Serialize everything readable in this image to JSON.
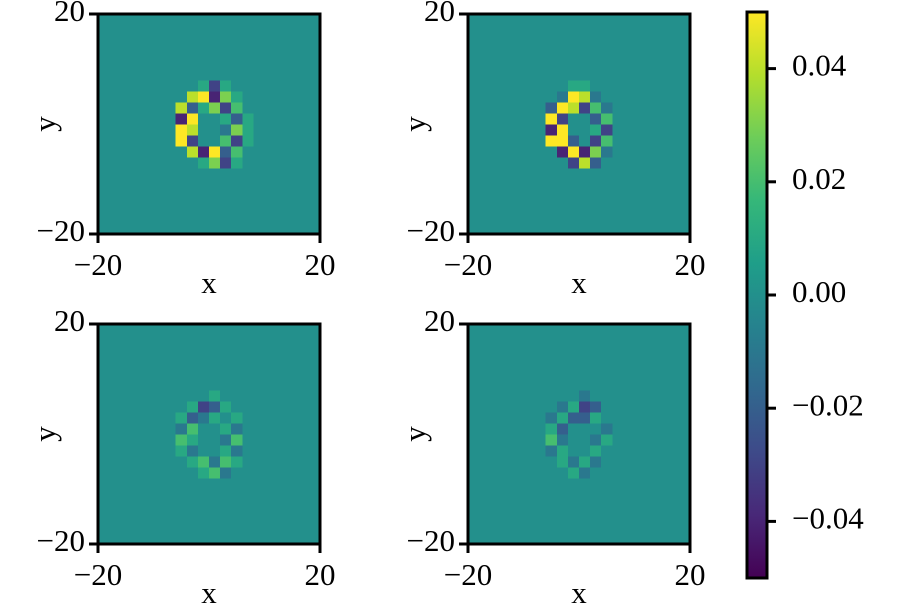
{
  "chart_data": [
    {
      "type": "heatmap",
      "xlabel": "x",
      "ylabel": "y",
      "xlim": [
        -20,
        20
      ],
      "ylim": [
        -20,
        20
      ],
      "xticks": [
        {
          "value": -20,
          "label": "−20"
        },
        20
      ],
      "yticks": [
        {
          "value": -20,
          "label": "−20"
        },
        20
      ],
      "xbins": [
        -20,
        -10,
        -8,
        -6,
        -4,
        -2,
        0,
        2,
        4,
        6,
        8,
        10,
        20
      ],
      "ybins": [
        -20,
        -10,
        -8,
        -6,
        -4,
        -2,
        0,
        2,
        4,
        6,
        8,
        10,
        20
      ],
      "z": [
        [
          0,
          0,
          0,
          0,
          0,
          0,
          0,
          0,
          0,
          0,
          0,
          0
        ],
        [
          0,
          0,
          0,
          0,
          0,
          0,
          0,
          0,
          0,
          0,
          0,
          0
        ],
        [
          0,
          0,
          0,
          0,
          0,
          0.01,
          0.03,
          -0.03,
          0.01,
          0,
          0,
          0
        ],
        [
          0,
          0,
          0,
          0,
          0.04,
          -0.04,
          0.05,
          -0.02,
          0.02,
          0,
          0,
          0
        ],
        [
          0,
          0,
          0,
          0.05,
          -0.03,
          0,
          0,
          0.02,
          -0.03,
          0.01,
          0,
          0
        ],
        [
          0,
          0,
          0,
          0.05,
          0.04,
          0,
          0,
          -0.01,
          0.03,
          0.01,
          0,
          0
        ],
        [
          0,
          0,
          0,
          -0.04,
          0.05,
          0,
          0,
          0.01,
          -0.02,
          0.01,
          0,
          0
        ],
        [
          0,
          0,
          0,
          0.04,
          -0.02,
          0.01,
          0.03,
          -0.03,
          0.02,
          0,
          0,
          0
        ],
        [
          0,
          0,
          0,
          0,
          0.04,
          0.05,
          -0.04,
          0.03,
          0.01,
          0,
          0,
          0
        ],
        [
          0,
          0,
          0,
          0,
          0,
          0.01,
          -0.03,
          0.01,
          0,
          0,
          0,
          0
        ],
        [
          0,
          0,
          0,
          0,
          0,
          0,
          0,
          0,
          0,
          0,
          0,
          0
        ],
        [
          0,
          0,
          0,
          0,
          0,
          0,
          0,
          0,
          0,
          0,
          0,
          0
        ]
      ]
    },
    {
      "type": "heatmap",
      "xlabel": "x",
      "ylabel": "y",
      "xlim": [
        -20,
        20
      ],
      "ylim": [
        -20,
        20
      ],
      "xticks": [
        {
          "value": -20,
          "label": "−20"
        },
        20
      ],
      "yticks": [
        {
          "value": -20,
          "label": "−20"
        },
        20
      ],
      "xbins": [
        -20,
        -10,
        -8,
        -6,
        -4,
        -2,
        0,
        2,
        4,
        6,
        8,
        10,
        20
      ],
      "ybins": [
        -20,
        -10,
        -8,
        -6,
        -4,
        -2,
        0,
        2,
        4,
        6,
        8,
        10,
        20
      ],
      "z": [
        [
          0,
          0,
          0,
          0,
          0,
          0,
          0,
          0,
          0,
          0,
          0,
          0
        ],
        [
          0,
          0,
          0,
          0,
          0,
          0,
          0,
          0,
          0,
          0,
          0,
          0
        ],
        [
          0,
          0,
          0,
          0,
          0,
          -0.03,
          0.04,
          -0.02,
          0,
          0,
          0,
          0
        ],
        [
          0,
          0,
          0,
          0,
          -0.04,
          0.05,
          -0.04,
          0.03,
          -0.01,
          0,
          0,
          0
        ],
        [
          0,
          0,
          0,
          0.05,
          0.05,
          -0.02,
          0,
          -0.03,
          0.02,
          0,
          0,
          0
        ],
        [
          0,
          0,
          0,
          -0.04,
          0.05,
          0,
          0,
          0.01,
          -0.03,
          0,
          0,
          0
        ],
        [
          0,
          0,
          0,
          0.05,
          -0.03,
          0,
          0,
          -0.02,
          0.02,
          0,
          0,
          0
        ],
        [
          0,
          0,
          0,
          -0.02,
          0.05,
          0.04,
          -0.03,
          0.02,
          -0.01,
          0,
          0,
          0
        ],
        [
          0,
          0,
          0,
          0,
          -0.01,
          0.05,
          0.04,
          -0.01,
          0,
          0,
          0,
          0
        ],
        [
          0,
          0,
          0,
          0,
          0,
          0.01,
          0.01,
          0,
          0,
          0,
          0,
          0
        ],
        [
          0,
          0,
          0,
          0,
          0,
          0,
          0,
          0,
          0,
          0,
          0,
          0
        ],
        [
          0,
          0,
          0,
          0,
          0,
          0,
          0,
          0,
          0,
          0,
          0,
          0
        ]
      ]
    },
    {
      "type": "heatmap",
      "xlabel": "x",
      "ylabel": "y",
      "xlim": [
        -20,
        20
      ],
      "ylim": [
        -20,
        20
      ],
      "xticks": [
        {
          "value": -20,
          "label": "−20"
        },
        20
      ],
      "yticks": [
        {
          "value": -20,
          "label": "−20"
        },
        20
      ],
      "xbins": [
        -20,
        -10,
        -8,
        -6,
        -4,
        -2,
        0,
        2,
        4,
        6,
        8,
        10,
        20
      ],
      "ybins": [
        -20,
        -10,
        -8,
        -6,
        -4,
        -2,
        0,
        2,
        4,
        6,
        8,
        10,
        20
      ],
      "z": [
        [
          0,
          0,
          0,
          0,
          0,
          0,
          0,
          0,
          0,
          0,
          0,
          0
        ],
        [
          0,
          0,
          0,
          0,
          0,
          0,
          0,
          0,
          0,
          0,
          0,
          0
        ],
        [
          0,
          0,
          0,
          0,
          0,
          0.01,
          0.02,
          -0.01,
          0,
          0,
          0,
          0
        ],
        [
          0,
          0,
          0,
          0,
          0.01,
          0.02,
          -0.01,
          0.02,
          0.01,
          0,
          0,
          0
        ],
        [
          0,
          0,
          0,
          0.01,
          -0.01,
          0,
          0,
          0.01,
          -0.01,
          0,
          0,
          0
        ],
        [
          0,
          0,
          0,
          0.02,
          0.01,
          0,
          0,
          -0.01,
          0.02,
          0,
          0,
          0
        ],
        [
          0,
          0,
          0,
          -0.01,
          0.02,
          0,
          0,
          0.01,
          -0.01,
          0,
          0,
          0
        ],
        [
          0,
          0,
          0,
          0.01,
          -0.02,
          -0.01,
          0.01,
          0,
          0.01,
          0,
          0,
          0
        ],
        [
          0,
          0,
          0,
          0,
          0.01,
          -0.03,
          -0.02,
          0.01,
          0,
          0,
          0,
          0
        ],
        [
          0,
          0,
          0,
          0,
          0,
          0,
          0.01,
          0,
          0,
          0,
          0,
          0
        ],
        [
          0,
          0,
          0,
          0,
          0,
          0,
          0,
          0,
          0,
          0,
          0,
          0
        ],
        [
          0,
          0,
          0,
          0,
          0,
          0,
          0,
          0,
          0,
          0,
          0,
          0
        ]
      ]
    },
    {
      "type": "heatmap",
      "xlabel": "x",
      "ylabel": "y",
      "xlim": [
        -20,
        20
      ],
      "ylim": [
        -20,
        20
      ],
      "xticks": [
        {
          "value": -20,
          "label": "−20"
        },
        20
      ],
      "yticks": [
        {
          "value": -20,
          "label": "−20"
        },
        20
      ],
      "xbins": [
        -20,
        -10,
        -8,
        -6,
        -4,
        -2,
        0,
        2,
        4,
        6,
        8,
        10,
        20
      ],
      "ybins": [
        -20,
        -10,
        -8,
        -6,
        -4,
        -2,
        0,
        2,
        4,
        6,
        8,
        10,
        20
      ],
      "z": [
        [
          0,
          0,
          0,
          0,
          0,
          0,
          0,
          0,
          0,
          0,
          0,
          0
        ],
        [
          0,
          0,
          0,
          0,
          0,
          0,
          0,
          0,
          0,
          0,
          0,
          0
        ],
        [
          0,
          0,
          0,
          0,
          0,
          0.01,
          -0.01,
          0,
          0,
          0,
          0,
          0
        ],
        [
          0,
          0,
          0,
          0,
          0.01,
          -0.01,
          0.01,
          -0.01,
          0,
          0,
          0,
          0
        ],
        [
          0,
          0,
          0,
          -0.01,
          0.01,
          0,
          0,
          0.01,
          0,
          0,
          0,
          0
        ],
        [
          0,
          0,
          0,
          0.02,
          -0.01,
          0,
          0,
          -0.01,
          0.01,
          0,
          0,
          0
        ],
        [
          0,
          0,
          0,
          0.01,
          -0.02,
          0,
          0,
          0,
          -0.01,
          0,
          0,
          0
        ],
        [
          0,
          0,
          0,
          -0.01,
          0.01,
          -0.02,
          -0.02,
          0.01,
          0,
          0,
          0,
          0
        ],
        [
          0,
          0,
          0,
          0,
          -0.01,
          0.01,
          -0.03,
          -0.02,
          0,
          0,
          0,
          0
        ],
        [
          0,
          0,
          0,
          0,
          0,
          0,
          -0.01,
          0,
          0,
          0,
          0,
          0
        ],
        [
          0,
          0,
          0,
          0,
          0,
          0,
          0,
          0,
          0,
          0,
          0,
          0
        ],
        [
          0,
          0,
          0,
          0,
          0,
          0,
          0,
          0,
          0,
          0,
          0,
          0
        ]
      ]
    },
    {
      "type": "colorbar",
      "cmap": "viridis",
      "clim": [
        -0.05,
        0.05
      ],
      "ticks": [
        {
          "value": -0.04,
          "label": "−0.04"
        },
        {
          "value": -0.02,
          "label": "−0.02"
        },
        {
          "value": 0,
          "label": "0.00"
        },
        0.02,
        0.04
      ]
    }
  ]
}
